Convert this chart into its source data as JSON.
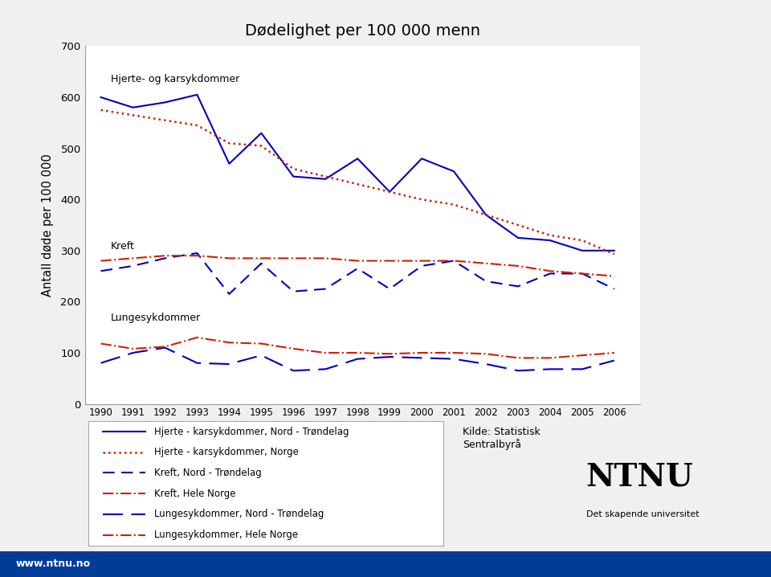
{
  "title": "Dødelighet per 100 000 menn",
  "ylabel": "Antall døde per 100 000",
  "years": [
    1990,
    1991,
    1992,
    1993,
    1994,
    1995,
    1996,
    1997,
    1998,
    1999,
    2000,
    2001,
    2002,
    2003,
    2004,
    2005,
    2006
  ],
  "hjerte_nordtrondelag": [
    600,
    580,
    590,
    605,
    470,
    530,
    445,
    440,
    480,
    415,
    480,
    455,
    370,
    325,
    320,
    300,
    300
  ],
  "hjerte_norge": [
    575,
    565,
    555,
    545,
    510,
    505,
    460,
    445,
    430,
    415,
    400,
    390,
    370,
    350,
    330,
    320,
    293
  ],
  "kreft_nordtrondelag": [
    260,
    270,
    285,
    295,
    215,
    275,
    220,
    225,
    265,
    225,
    270,
    280,
    240,
    230,
    255,
    255,
    225
  ],
  "kreft_helnorge": [
    280,
    285,
    290,
    290,
    285,
    285,
    285,
    285,
    280,
    280,
    280,
    280,
    275,
    270,
    260,
    255,
    250
  ],
  "lunge_nordtrondelag": [
    80,
    100,
    110,
    80,
    78,
    95,
    65,
    68,
    88,
    92,
    90,
    88,
    78,
    65,
    68,
    68,
    85
  ],
  "lunge_helnorge": [
    118,
    108,
    112,
    130,
    120,
    118,
    108,
    100,
    100,
    98,
    100,
    100,
    98,
    90,
    90,
    95,
    100
  ],
  "hjerte_nt_color": "#0000bb",
  "hjerte_norge_color": "#cc2200",
  "kreft_nt_color": "#0000bb",
  "kreft_norge_color": "#cc2200",
  "lunge_nt_color": "#0000bb",
  "lunge_norge_color": "#cc2200",
  "bg_color": "#f0f0f0",
  "plot_bg_color": "#ffffff",
  "label_hjerte_nt": "Hjerte - karsykdommer, Nord - Trøndelag",
  "label_hjerte_norge": "Hjerte - karsykdommer, Norge",
  "label_kreft_nt": "Kreft, Nord - Trøndelag",
  "label_kreft_norge": "Kreft, Hele Norge",
  "label_lunge_nt": "Lungesykdommer, Nord - Trøndelag",
  "label_lunge_norge": "Lungesykdommer, Hele Norge",
  "annotation_hjerte": "Hjerte- og karsykdommer",
  "annotation_kreft": "Kreft",
  "annotation_lunge": "Lungesykdommer",
  "source_text": "Kilde: Statistisk\nSentralbyrå",
  "ylim": [
    0,
    700
  ],
  "yticks": [
    0,
    100,
    200,
    300,
    400,
    500,
    600,
    700
  ]
}
